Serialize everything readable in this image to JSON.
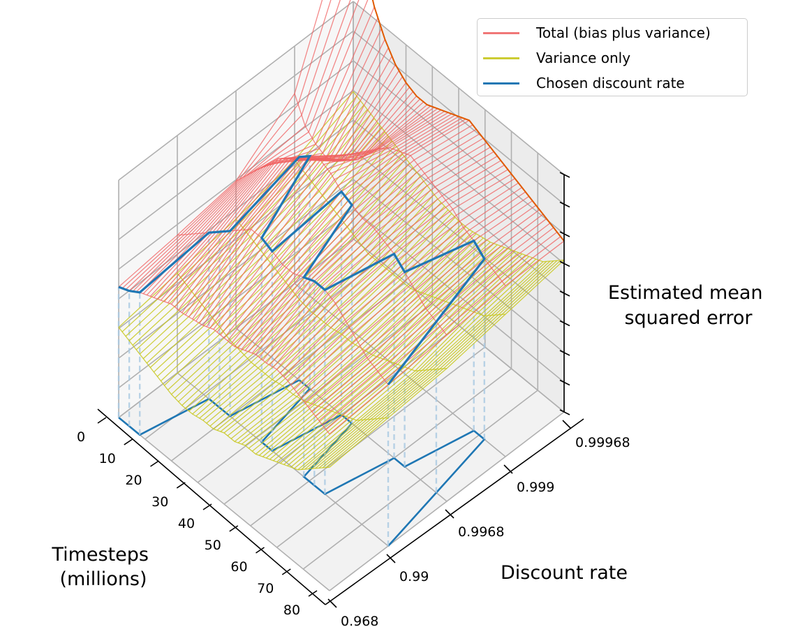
{
  "chart_data": {
    "type": "line",
    "projection": "3d-wireframe",
    "title": "",
    "xlabel": "Timesteps\n(millions)",
    "ylabel": "Discount rate",
    "zlabel": "Estimated mean\nsquared error",
    "x_ticks": [
      "0",
      "10",
      "20",
      "30",
      "40",
      "50",
      "60",
      "70",
      "80"
    ],
    "x_range": [
      0,
      80
    ],
    "y_ticks": [
      "0.968",
      "0.99",
      "0.9968",
      "0.999",
      "0.99968"
    ],
    "y_range_index": [
      0,
      4
    ],
    "z_ticks_count": 9,
    "z_tick_labels_shown": false,
    "grid": true,
    "legend_position": "top-right",
    "legend": [
      {
        "label": "Total (bias plus variance)",
        "color": "#f07777"
      },
      {
        "label": "Variance only",
        "color": "#cccc33"
      },
      {
        "label": "Chosen discount rate",
        "color": "#1f77b4"
      }
    ],
    "colors": {
      "total": "#f06060",
      "total_edge": "#e05a00",
      "variance": "#c8c820",
      "chosen": "#1f77b4",
      "chosen_drop": "#a9c9e2"
    },
    "x_samples": [
      0,
      4,
      8,
      12,
      16,
      20,
      24,
      28,
      32,
      36,
      40,
      44,
      48,
      52,
      56,
      60,
      64,
      68,
      72,
      76,
      80
    ],
    "series": [
      {
        "name": "Total (bias plus variance)",
        "note": "MSE in normalised units (0 = floor, 1 = top of z axis); one curve per timestep across discount index 0..4",
        "values_by_discount": [
          [
            0.55,
            0.57,
            0.6,
            0.62,
            0.64,
            0.66,
            0.66,
            0.67,
            0.68,
            0.7,
            0.7,
            0.7,
            0.72,
            0.74,
            0.74,
            0.75,
            0.74,
            0.72,
            0.7,
            0.68,
            0.66
          ],
          [
            0.58,
            0.62,
            0.66,
            0.7,
            0.74,
            0.78,
            0.82,
            0.86,
            0.86,
            0.84,
            0.82,
            0.82,
            0.84,
            0.86,
            0.86,
            0.84,
            0.8,
            0.76,
            0.72,
            0.7,
            0.68
          ],
          [
            0.62,
            0.68,
            0.74,
            0.8,
            0.86,
            0.9,
            0.94,
            0.98,
            1.0,
            0.98,
            0.94,
            0.92,
            0.9,
            0.9,
            0.88,
            0.86,
            0.82,
            0.78,
            0.74,
            0.72,
            0.7
          ],
          [
            0.8,
            0.7,
            0.66,
            0.64,
            0.66,
            0.7,
            0.74,
            0.8,
            0.86,
            0.9,
            0.92,
            0.94,
            0.92,
            0.9,
            0.88,
            0.86,
            0.82,
            0.8,
            0.76,
            0.74,
            0.72
          ],
          [
            1.45,
            1.2,
            1.05,
            0.95,
            0.88,
            0.84,
            0.82,
            0.82,
            0.84,
            0.86,
            0.88,
            0.9,
            0.88,
            0.86,
            0.84,
            0.82,
            0.8,
            0.78,
            0.76,
            0.74,
            0.72
          ]
        ]
      },
      {
        "name": "Variance only",
        "values_by_discount": [
          [
            0.38,
            0.36,
            0.34,
            0.32,
            0.3,
            0.28,
            0.27,
            0.27,
            0.28,
            0.28,
            0.3,
            0.3,
            0.32,
            0.32,
            0.34,
            0.36,
            0.38,
            0.4,
            0.44,
            0.48,
            0.52
          ],
          [
            0.42,
            0.4,
            0.38,
            0.36,
            0.34,
            0.32,
            0.31,
            0.3,
            0.3,
            0.3,
            0.31,
            0.31,
            0.32,
            0.34,
            0.36,
            0.38,
            0.4,
            0.42,
            0.46,
            0.5,
            0.54
          ],
          [
            0.46,
            0.44,
            0.42,
            0.4,
            0.38,
            0.36,
            0.34,
            0.33,
            0.33,
            0.33,
            0.34,
            0.34,
            0.35,
            0.36,
            0.38,
            0.4,
            0.42,
            0.44,
            0.48,
            0.52,
            0.56
          ],
          [
            0.52,
            0.5,
            0.48,
            0.46,
            0.44,
            0.42,
            0.4,
            0.38,
            0.38,
            0.38,
            0.38,
            0.38,
            0.4,
            0.42,
            0.44,
            0.46,
            0.48,
            0.5,
            0.52,
            0.56,
            0.6
          ],
          [
            0.62,
            0.6,
            0.58,
            0.56,
            0.54,
            0.52,
            0.5,
            0.48,
            0.46,
            0.45,
            0.44,
            0.44,
            0.45,
            0.46,
            0.48,
            0.5,
            0.52,
            0.54,
            0.56,
            0.6,
            0.64
          ]
        ]
      },
      {
        "name": "Chosen discount rate",
        "note": "discount index chosen at each timestep sample (0 = 0.968 … 4 = 0.99968)",
        "chosen_index": [
          0,
          0,
          0,
          1,
          1,
          1,
          2,
          2,
          1,
          1,
          2,
          2,
          1,
          1,
          1,
          2,
          2,
          3,
          3,
          2,
          1
        ]
      }
    ]
  }
}
